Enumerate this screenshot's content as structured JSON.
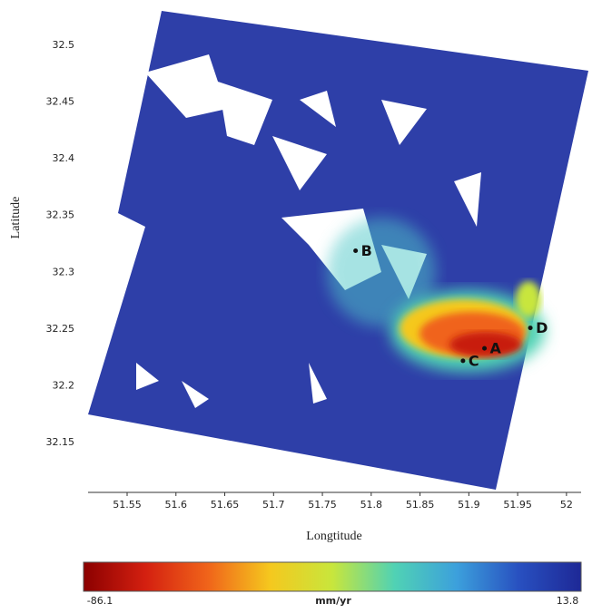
{
  "chart_data": {
    "type": "map",
    "xlabel": "Longtitude",
    "ylabel": "Latitude",
    "xlim": [
      51.51,
      52.015
    ],
    "ylim": [
      32.106,
      32.532
    ],
    "xticks": [
      51.55,
      51.6,
      51.65,
      51.7,
      51.75,
      51.8,
      51.85,
      51.9,
      51.95,
      52
    ],
    "yticks": [
      32.5,
      32.45,
      32.4,
      32.35,
      32.3,
      32.25,
      32.2,
      32.15
    ],
    "points": [
      {
        "label": "A",
        "x": 51.916,
        "y": 32.233
      },
      {
        "label": "B",
        "x": 51.784,
        "y": 32.319
      },
      {
        "label": "C",
        "x": 51.894,
        "y": 32.222
      },
      {
        "label": "D",
        "x": 51.963,
        "y": 32.251
      }
    ],
    "colorbar": {
      "min": -86.1,
      "max": 13.8,
      "unit": "mm/yr",
      "colors": [
        "#8b0000",
        "#d42010",
        "#f0641a",
        "#f5c81e",
        "#c8e63c",
        "#50d2b4",
        "#3ca0dc",
        "#2850c0",
        "#1e2896"
      ]
    }
  }
}
